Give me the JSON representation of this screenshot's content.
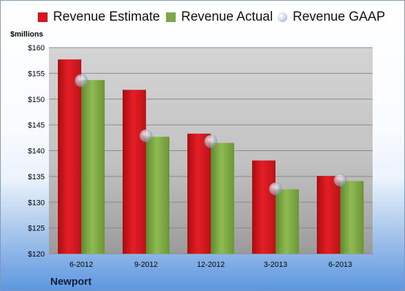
{
  "chart_data": {
    "type": "bar",
    "title": "",
    "ylabel": "$millions",
    "xlabel": "",
    "ylim": [
      120,
      160
    ],
    "yticks": [
      "$120",
      "$125",
      "$130",
      "$135",
      "$140",
      "$145",
      "$150",
      "$155",
      "$160"
    ],
    "ytick_values": [
      120,
      125,
      130,
      135,
      140,
      145,
      150,
      155,
      160
    ],
    "categories": [
      "6-2012",
      "9-2012",
      "12-2012",
      "3-2013",
      "6-2013"
    ],
    "series": [
      {
        "name": "Revenue Estimate",
        "kind": "bar",
        "color": "#d9151c",
        "values": [
          157.7,
          151.8,
          143.3,
          138.1,
          135.1
        ]
      },
      {
        "name": "Revenue Actual",
        "kind": "bar",
        "color": "#7ea843",
        "values": [
          153.7,
          142.7,
          141.5,
          132.5,
          134.1
        ]
      },
      {
        "name": "Revenue GAAP",
        "kind": "marker",
        "color": "#c8d2de",
        "values": [
          153.6,
          142.9,
          141.8,
          132.6,
          134.3
        ]
      }
    ],
    "grid": true,
    "legend_position": "top",
    "footer": "Newport"
  }
}
